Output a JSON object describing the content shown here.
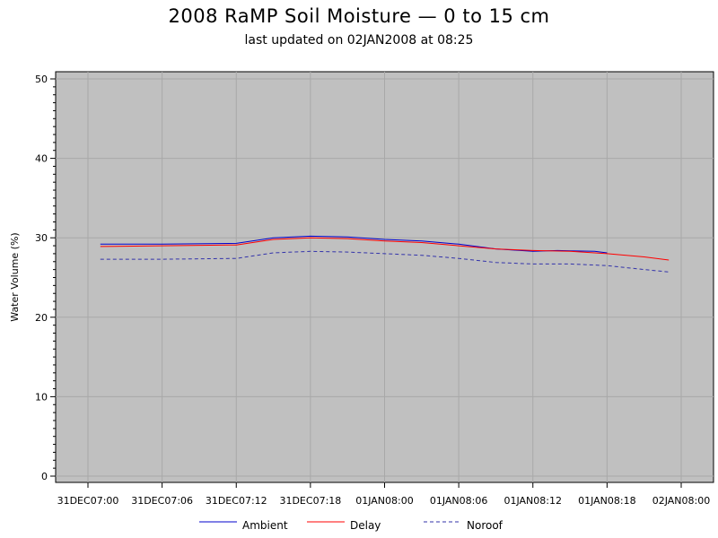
{
  "chart_data": {
    "type": "line",
    "title": "2008 RaMP Soil Moisture — 0 to 15 cm",
    "subtitle": "last updated on 02JAN2008 at 08:25",
    "xlabel": "",
    "ylabel": "Water Volume (%)",
    "ylim": [
      0,
      50
    ],
    "yticks": [
      0,
      10,
      20,
      30,
      40,
      50
    ],
    "xlim": [
      "31DEC07:00",
      "02JAN08:00"
    ],
    "x_tick_labels": [
      "31DEC07:00",
      "31DEC07:06",
      "31DEC07:12",
      "31DEC07:18",
      "01JAN08:00",
      "01JAN08:06",
      "01JAN08:12",
      "01JAN08:18",
      "02JAN08:00"
    ],
    "grid": true,
    "legend_position": "bottom",
    "series": [
      {
        "name": "Ambient",
        "color": "#0000cc",
        "style": "solid",
        "x": [
          "31DEC07:01",
          "31DEC07:06",
          "31DEC07:12",
          "31DEC07:15",
          "31DEC07:18",
          "31DEC07:21",
          "01JAN08:00",
          "01JAN08:03",
          "01JAN08:06",
          "01JAN08:09",
          "01JAN08:12",
          "01JAN08:14",
          "01JAN08:17",
          "01JAN08:18"
        ],
        "values": [
          29.2,
          29.2,
          29.3,
          30.0,
          30.2,
          30.1,
          29.8,
          29.6,
          29.2,
          28.6,
          28.3,
          28.4,
          28.3,
          28.1
        ]
      },
      {
        "name": "Delay",
        "color": "#ff0000",
        "style": "solid",
        "x": [
          "31DEC07:01",
          "31DEC07:06",
          "31DEC07:12",
          "31DEC07:15",
          "31DEC07:18",
          "31DEC07:21",
          "01JAN08:00",
          "01JAN08:03",
          "01JAN08:06",
          "01JAN08:09",
          "01JAN08:12",
          "01JAN08:15",
          "01JAN08:18",
          "01JAN08:21",
          "01JAN08:23"
        ],
        "values": [
          28.9,
          29.0,
          29.1,
          29.8,
          30.0,
          29.9,
          29.6,
          29.4,
          29.0,
          28.6,
          28.4,
          28.3,
          28.0,
          27.6,
          27.2
        ]
      },
      {
        "name": "Noroof",
        "color": "#3333aa",
        "style": "dashed",
        "x": [
          "31DEC07:01",
          "31DEC07:06",
          "31DEC07:12",
          "31DEC07:15",
          "31DEC07:18",
          "31DEC07:21",
          "01JAN08:00",
          "01JAN08:03",
          "01JAN08:06",
          "01JAN08:09",
          "01JAN08:12",
          "01JAN08:15",
          "01JAN08:18",
          "01JAN08:21",
          "01JAN08:23"
        ],
        "values": [
          27.3,
          27.3,
          27.4,
          28.1,
          28.3,
          28.2,
          28.0,
          27.8,
          27.4,
          26.9,
          26.7,
          26.7,
          26.5,
          26.0,
          25.7
        ]
      }
    ]
  }
}
